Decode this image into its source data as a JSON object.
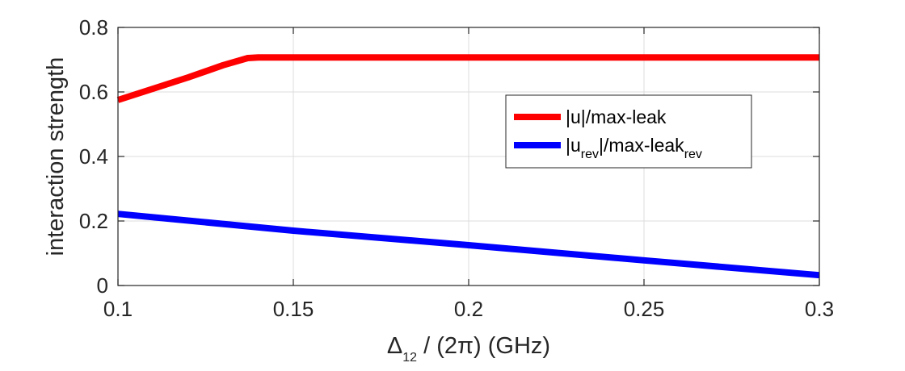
{
  "chart_data": {
    "type": "line",
    "xlabel_symbol": "Δ",
    "xlabel_sub": "12",
    "xlabel_rest": " / (2π) (GHz)",
    "ylabel": "interaction strength",
    "xlim": [
      0.1,
      0.3
    ],
    "ylim": [
      0,
      0.8
    ],
    "xticks": [
      0.1,
      0.15,
      0.2,
      0.25,
      0.3
    ],
    "xtick_labels": [
      "0.1",
      "0.15",
      "0.2",
      "0.25",
      "0.3"
    ],
    "yticks": [
      0,
      0.2,
      0.4,
      0.6,
      0.8
    ],
    "ytick_labels": [
      "0",
      "0.2",
      "0.4",
      "0.6",
      "0.8"
    ],
    "grid": true,
    "legend_position": "right-middle",
    "series": [
      {
        "legend_main": "|u|/max-leak",
        "legend_sub": "",
        "legend_tail": "",
        "color": "#ff0000",
        "x": [
          0.1,
          0.11,
          0.12,
          0.13,
          0.137,
          0.14,
          0.15,
          0.2,
          0.25,
          0.3
        ],
        "y": [
          0.575,
          0.61,
          0.645,
          0.683,
          0.705,
          0.707,
          0.707,
          0.707,
          0.707,
          0.707
        ]
      },
      {
        "legend_main": "|u",
        "legend_sub": "rev",
        "legend_tail": "|/max-leak",
        "legend_tail_sub": "rev",
        "color": "#0000ff",
        "x": [
          0.1,
          0.15,
          0.2,
          0.25,
          0.3
        ],
        "y": [
          0.222,
          0.17,
          0.125,
          0.078,
          0.032
        ]
      }
    ]
  }
}
